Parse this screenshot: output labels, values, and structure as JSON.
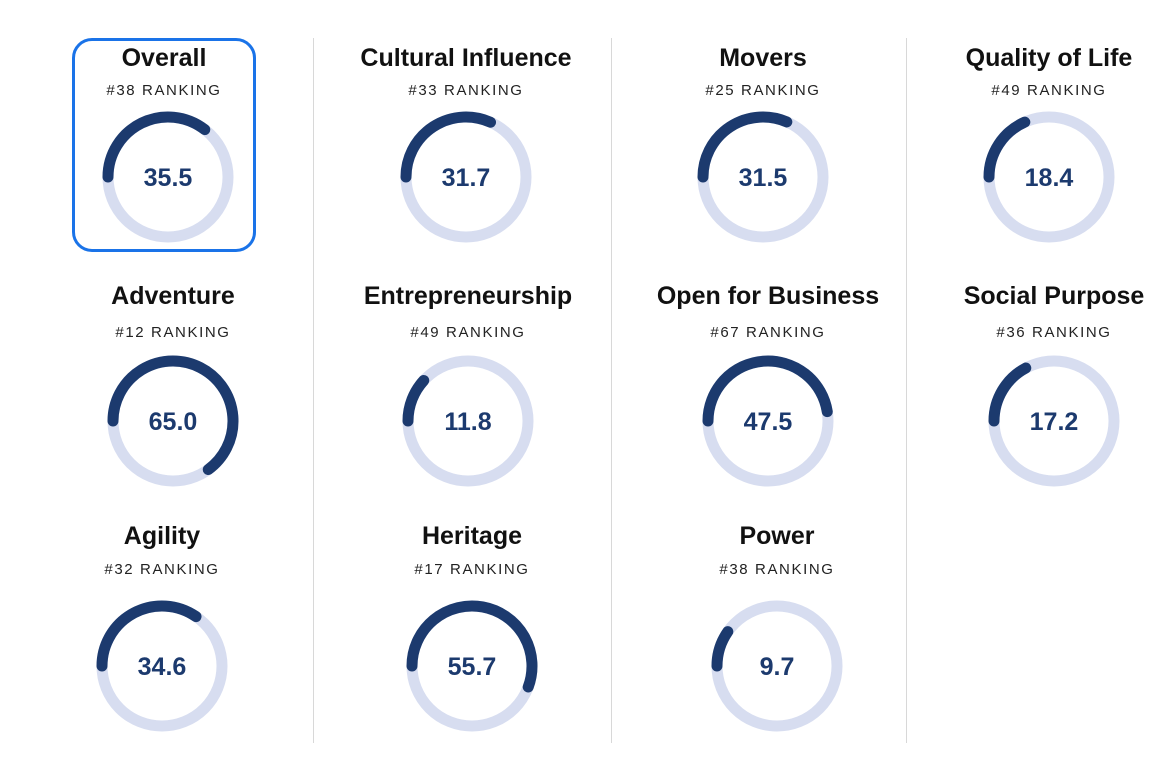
{
  "chart_data": {
    "type": "donut-gauges",
    "max": 100,
    "colors": {
      "arc": "#1c3a6e",
      "track": "#d7ddf0",
      "selected_border": "#1a73e8"
    },
    "items": [
      {
        "key": "overall",
        "title": "Overall",
        "ranking": "#38 RANKING",
        "score": 35.5,
        "label": "35.5",
        "selected": true
      },
      {
        "key": "cultural-influence",
        "title": "Cultural Influence",
        "ranking": "#33 RANKING",
        "score": 31.7,
        "label": "31.7"
      },
      {
        "key": "movers",
        "title": "Movers",
        "ranking": "#25 RANKING",
        "score": 31.5,
        "label": "31.5"
      },
      {
        "key": "quality-of-life",
        "title": "Quality of Life",
        "ranking": "#49 RANKING",
        "score": 18.4,
        "label": "18.4"
      },
      {
        "key": "adventure",
        "title": "Adventure",
        "ranking": "#12 RANKING",
        "score": 65.0,
        "label": "65.0"
      },
      {
        "key": "entrepreneurship",
        "title": "Entrepreneurship",
        "ranking": "#49 RANKING",
        "score": 11.8,
        "label": "11.8"
      },
      {
        "key": "open-for-business",
        "title": "Open for Business",
        "ranking": "#67 RANKING",
        "score": 47.5,
        "label": "47.5"
      },
      {
        "key": "social-purpose",
        "title": "Social Purpose",
        "ranking": "#36 RANKING",
        "score": 17.2,
        "label": "17.2"
      },
      {
        "key": "agility",
        "title": "Agility",
        "ranking": "#32 RANKING",
        "score": 34.6,
        "label": "34.6"
      },
      {
        "key": "heritage",
        "title": "Heritage",
        "ranking": "#17 RANKING",
        "score": 55.7,
        "label": "55.7"
      },
      {
        "key": "power",
        "title": "Power",
        "ranking": "#38 RANKING",
        "score": 9.7,
        "label": "9.7"
      }
    ]
  }
}
